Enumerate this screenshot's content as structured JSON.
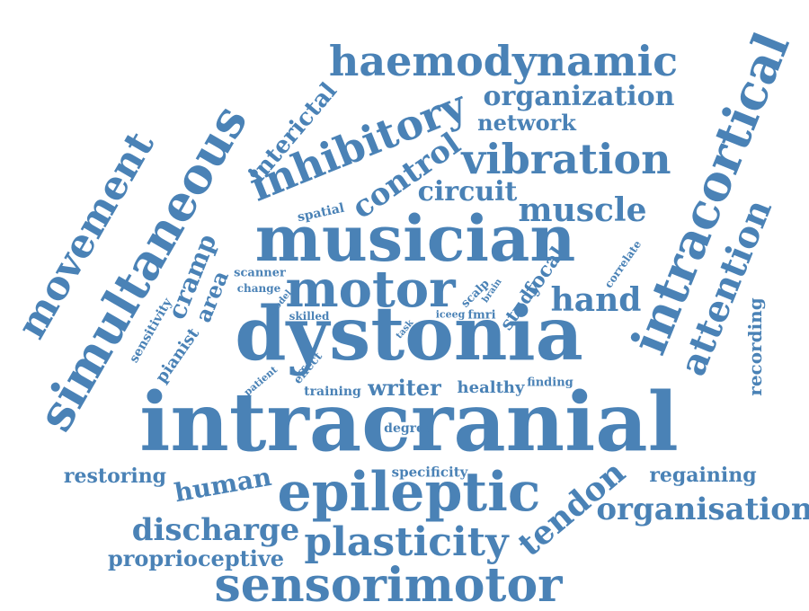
{
  "word_cloud": {
    "color": "#4a82b6",
    "words": [
      "intracranial",
      "dystonia",
      "musician",
      "epileptic",
      "sensorimotor",
      "motor",
      "simultaneous",
      "intracortical",
      "haemodynamic",
      "inhibitory",
      "vibration",
      "movement",
      "plasticity",
      "organization",
      "organisation",
      "attention",
      "control",
      "interictal",
      "muscle",
      "tendon",
      "circuit",
      "discharge",
      "hand",
      "human",
      "network",
      "recording",
      "writer",
      "proprioceptive",
      "restoring",
      "regaining",
      "cramp",
      "area",
      "focal",
      "study",
      "healthy",
      "degree",
      "specificity",
      "training",
      "pianist",
      "sensitivity",
      "spatial",
      "correlate",
      "scanner",
      "change",
      "skilled",
      "effect",
      "patient",
      "task",
      "iceeg",
      "fmri",
      "scalp",
      "brain",
      "finding",
      "model"
    ]
  }
}
